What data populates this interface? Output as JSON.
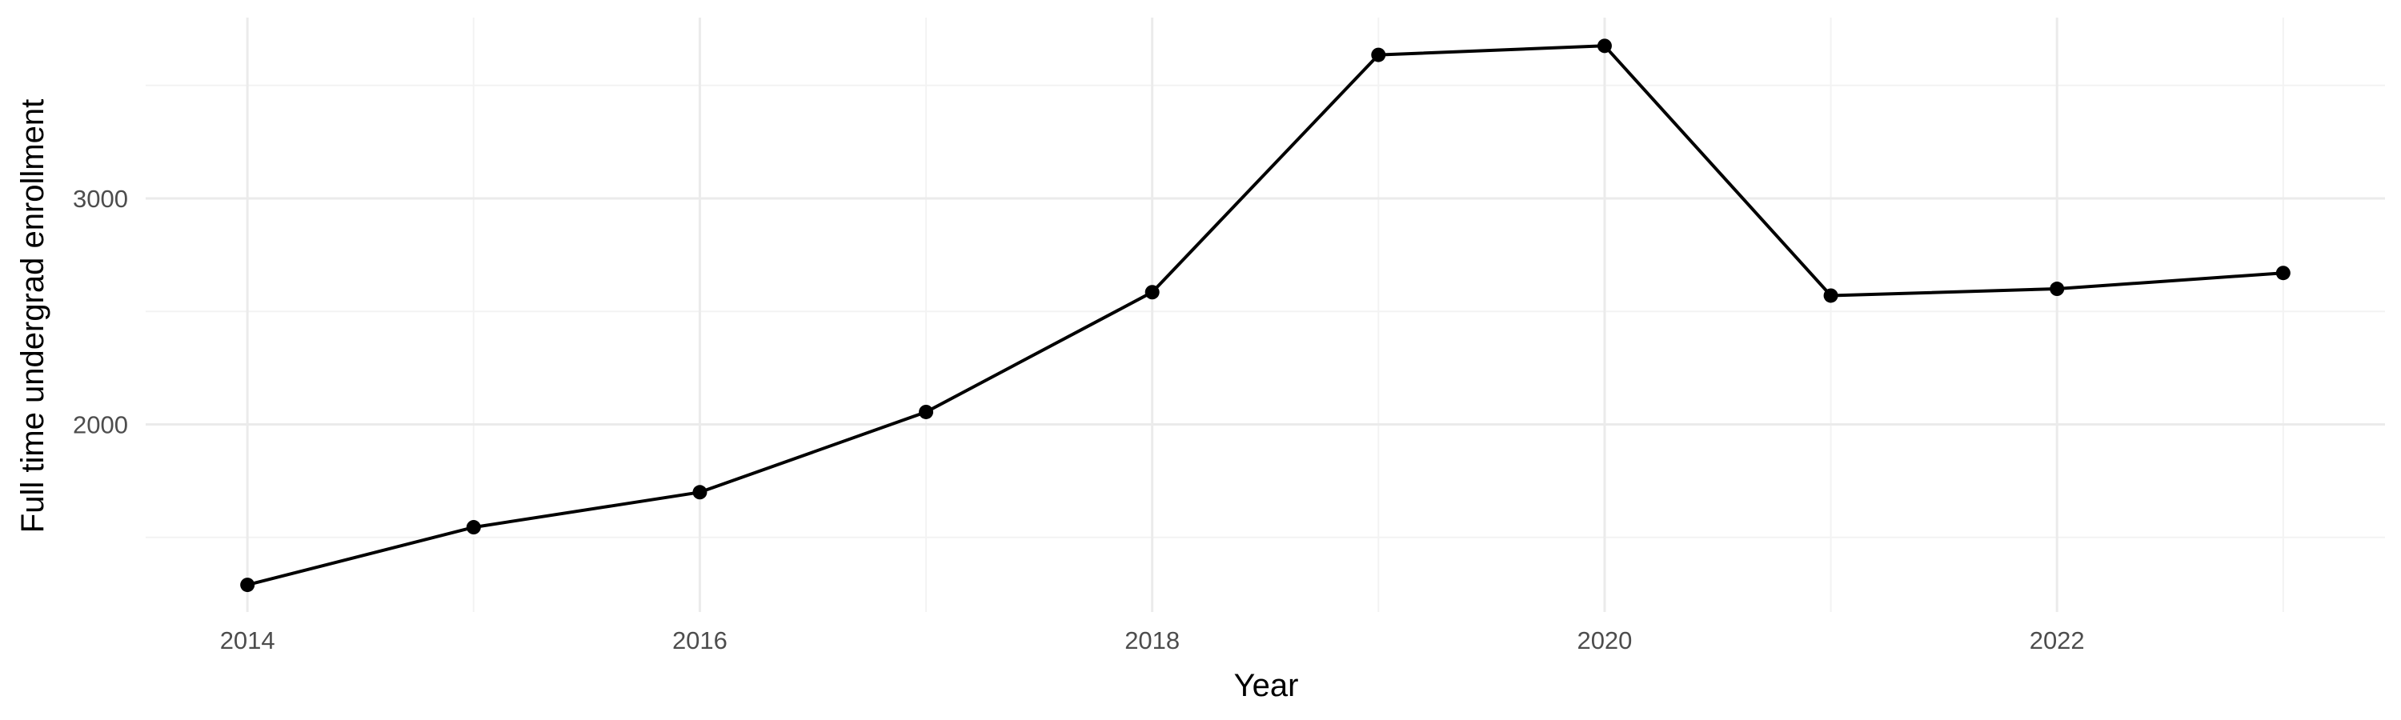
{
  "chart_data": {
    "type": "line",
    "title": "",
    "xlabel": "Year",
    "ylabel": "Full time undergrad enrollment",
    "x": [
      2014,
      2015,
      2016,
      2017,
      2018,
      2019,
      2020,
      2021,
      2022,
      2023
    ],
    "series": [
      {
        "values": [
          1290,
          1545,
          1700,
          2055,
          2585,
          3635,
          3675,
          2570,
          2600,
          2670
        ],
        "color": "#000000"
      }
    ],
    "x_major_ticks": [
      2014,
      2016,
      2018,
      2020,
      2022
    ],
    "x_minor_ticks": [
      2015,
      2017,
      2019,
      2021,
      2023
    ],
    "y_major_ticks": [
      2000,
      3000
    ],
    "y_minor_ticks": [
      1500,
      2500,
      3500
    ],
    "xlim": [
      2013.55,
      2023.45
    ],
    "ylim": [
      1170,
      3800
    ],
    "grid": true,
    "legend": "none"
  }
}
